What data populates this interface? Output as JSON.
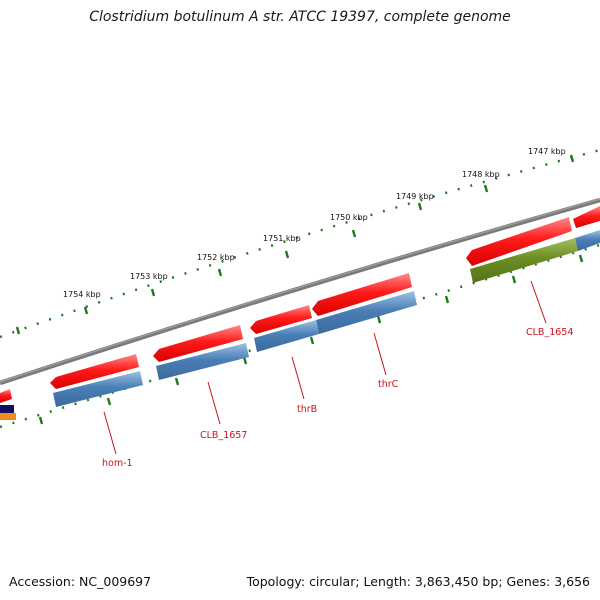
{
  "title": "Clostridium botulinum A str. ATCC 19397, complete genome",
  "footer": {
    "accession_label": "Accession:",
    "accession": "NC_009697",
    "topology_label": "Topology:",
    "topology": "circular",
    "length_label": "Length:",
    "length": "3,863,450 bp",
    "genes_label": "Genes:",
    "genes": "3,656"
  },
  "scale_labels": [
    "1747 kbp",
    "1748 kbp",
    "1749 kbp",
    "1750 kbp",
    "1751 kbp",
    "1752 kbp",
    "1753 kbp",
    "1754 kbp"
  ],
  "gene_labels": [
    "CLB_1654",
    "thrC",
    "thrB",
    "CLB_1657",
    "hom-1"
  ],
  "colors": {
    "backbone": "#7a7a7a",
    "cds_forward": "#ff1a1a",
    "cds_blue": "#4a7fb5",
    "cds_olive": "#6b8e23",
    "tick": "#1f7a1f",
    "label": "#c8141c"
  }
}
